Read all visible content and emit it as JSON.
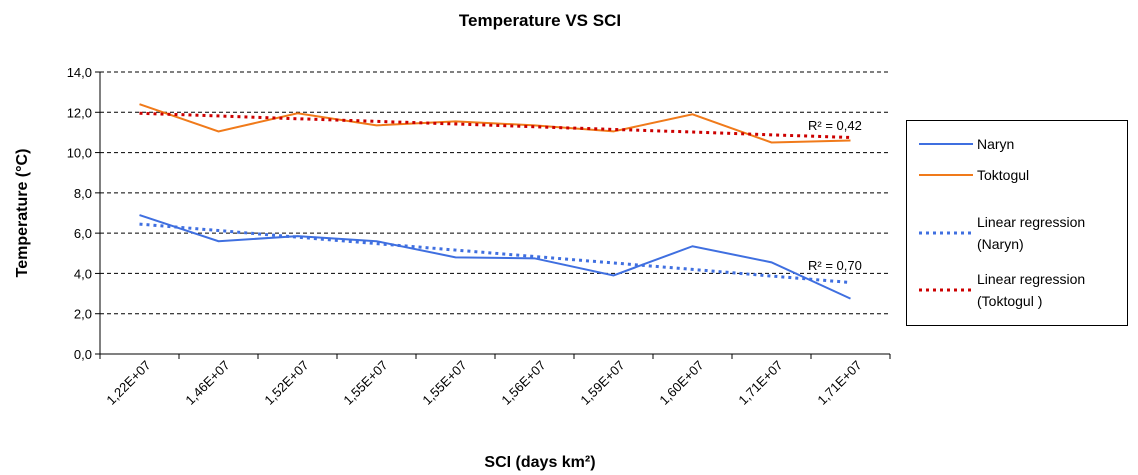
{
  "chart_data": {
    "type": "line",
    "title": "Temperature VS SCI",
    "xlabel": "SCI (days km²)",
    "ylabel": "Temperature (°C)",
    "categories": [
      "1,22E+07",
      "1,46E+07",
      "1,52E+07",
      "1,55E+07",
      "1,55E+07",
      "1,56E+07",
      "1,59E+07",
      "1,60E+07",
      "1,71E+07",
      "1,71E+07"
    ],
    "series": [
      {
        "name": "Naryn",
        "color": "#3f6fe0",
        "dash": false,
        "values": [
          6.9,
          5.6,
          5.85,
          5.6,
          4.8,
          4.75,
          3.9,
          5.35,
          4.55,
          2.75
        ]
      },
      {
        "name": "Toktogul",
        "color": "#f07a1a",
        "dash": false,
        "values": [
          12.4,
          11.05,
          11.95,
          11.35,
          11.55,
          11.35,
          11.05,
          11.9,
          10.5,
          10.6
        ]
      },
      {
        "name": "Linear regression (Naryn)",
        "color": "#3f6fe0",
        "dash": true,
        "values": [
          6.45,
          6.13,
          5.8,
          5.48,
          5.16,
          4.84,
          4.52,
          4.2,
          3.87,
          3.55
        ]
      },
      {
        "name": "Linear regression (Toktogul )",
        "color": "#cc0000",
        "dash": true,
        "values": [
          11.95,
          11.82,
          11.68,
          11.55,
          11.42,
          11.28,
          11.15,
          11.02,
          10.88,
          10.75
        ]
      }
    ],
    "annotations": [
      "R² = 0,42",
      "R² = 0,70"
    ],
    "ylim": [
      0,
      14
    ],
    "yticks": [
      {
        "value": 0,
        "label": "0,0"
      },
      {
        "value": 2,
        "label": "2,0"
      },
      {
        "value": 4,
        "label": "4,0"
      },
      {
        "value": 6,
        "label": "6,0"
      },
      {
        "value": 8,
        "label": "8,0"
      },
      {
        "value": 10,
        "label": "10,0"
      },
      {
        "value": 12,
        "label": "12,0"
      },
      {
        "value": 14,
        "label": "14,0"
      }
    ],
    "grid": true
  }
}
